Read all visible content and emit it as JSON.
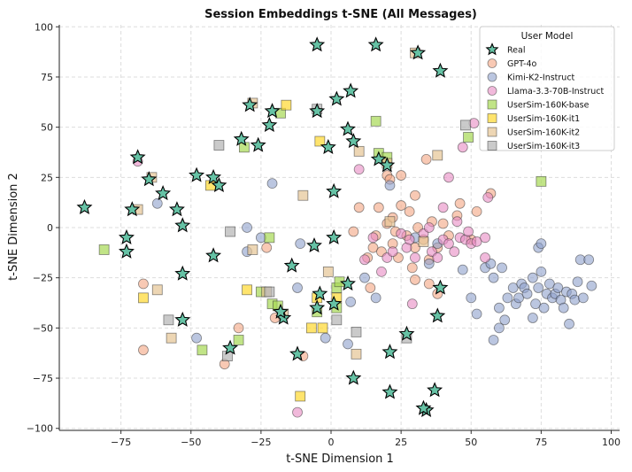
{
  "chart_data": {
    "type": "scatter",
    "title": "Session Embeddings t-SNE (All Messages)",
    "xlabel": "t-SNE Dimension 1",
    "ylabel": "t-SNE Dimension 2",
    "xlim": [
      -97,
      103
    ],
    "ylim": [
      -101,
      101
    ],
    "xticks": [
      -75,
      -50,
      -25,
      0,
      25,
      50,
      75,
      100
    ],
    "yticks": [
      -100,
      -75,
      -50,
      -25,
      0,
      25,
      50,
      75,
      100
    ],
    "grid": true,
    "legend": {
      "title": "User Model",
      "position": "top-right"
    },
    "series": [
      {
        "name": "GPT-4o",
        "marker": "circle",
        "color": "#f4a582",
        "alpha": 0.6,
        "points": [
          [
            -67,
            -61
          ],
          [
            -67,
            -28
          ],
          [
            -38,
            -68
          ],
          [
            -23,
            -10
          ],
          [
            -20,
            -45
          ],
          [
            -10,
            -64
          ],
          [
            8,
            -2
          ],
          [
            10,
            10
          ],
          [
            13,
            -15
          ],
          [
            14,
            -30
          ],
          [
            15,
            -10
          ],
          [
            16,
            -4
          ],
          [
            17,
            10
          ],
          [
            18,
            -12
          ],
          [
            20,
            2
          ],
          [
            20,
            26
          ],
          [
            21,
            24
          ],
          [
            22,
            -8
          ],
          [
            22,
            5
          ],
          [
            23,
            -2
          ],
          [
            24,
            -15
          ],
          [
            25,
            26
          ],
          [
            25,
            11
          ],
          [
            27,
            -4
          ],
          [
            28,
            8
          ],
          [
            29,
            -20
          ],
          [
            30,
            -10
          ],
          [
            30,
            -26
          ],
          [
            30,
            16
          ],
          [
            31,
            0
          ],
          [
            33,
            -6
          ],
          [
            34,
            34
          ],
          [
            35,
            -16
          ],
          [
            35,
            -28
          ],
          [
            36,
            3
          ],
          [
            38,
            -10
          ],
          [
            38,
            -33
          ],
          [
            40,
            2
          ],
          [
            42,
            -4
          ],
          [
            45,
            6
          ],
          [
            46,
            12
          ],
          [
            50,
            -6
          ],
          [
            52,
            8
          ],
          [
            57,
            17
          ],
          [
            -33,
            -50
          ]
        ]
      },
      {
        "name": "Kimi-K2-Instruct",
        "marker": "circle",
        "color": "#8da0cb",
        "alpha": 0.6,
        "points": [
          [
            -62,
            12
          ],
          [
            -48,
            -55
          ],
          [
            -30,
            0
          ],
          [
            -30,
            -12
          ],
          [
            -25,
            -5
          ],
          [
            -21,
            22
          ],
          [
            -12,
            -30
          ],
          [
            -11,
            -8
          ],
          [
            -2,
            -55
          ],
          [
            6,
            -58
          ],
          [
            7,
            -37
          ],
          [
            12,
            -25
          ],
          [
            16,
            -35
          ],
          [
            21,
            21
          ],
          [
            30,
            -5
          ],
          [
            35,
            -18
          ],
          [
            38,
            -8
          ],
          [
            47,
            -21
          ],
          [
            50,
            -35
          ],
          [
            52,
            -43
          ],
          [
            55,
            -20
          ],
          [
            57,
            -18
          ],
          [
            58,
            -25
          ],
          [
            60,
            -40
          ],
          [
            61,
            -20
          ],
          [
            62,
            -46
          ],
          [
            63,
            -35
          ],
          [
            65,
            -30
          ],
          [
            66,
            -38
          ],
          [
            67,
            -35
          ],
          [
            68,
            -28
          ],
          [
            69,
            -30
          ],
          [
            70,
            -33
          ],
          [
            72,
            -25
          ],
          [
            72,
            -45
          ],
          [
            73,
            -38
          ],
          [
            74,
            -10
          ],
          [
            74,
            -30
          ],
          [
            75,
            -22
          ],
          [
            76,
            -40
          ],
          [
            77,
            -33
          ],
          [
            78,
            -28
          ],
          [
            79,
            -35
          ],
          [
            80,
            -33
          ],
          [
            81,
            -30
          ],
          [
            82,
            -36
          ],
          [
            83,
            -40
          ],
          [
            84,
            -32
          ],
          [
            85,
            -48
          ],
          [
            86,
            -33
          ],
          [
            87,
            -36
          ],
          [
            88,
            -27
          ],
          [
            89,
            -16
          ],
          [
            90,
            -35
          ],
          [
            92,
            -16
          ],
          [
            93,
            -29
          ],
          [
            58,
            -56
          ],
          [
            60,
            -50
          ],
          [
            75,
            -8
          ]
        ]
      },
      {
        "name": "Llama-3.3-70B-Instruct",
        "marker": "circle",
        "color": "#e78ac3",
        "alpha": 0.6,
        "points": [
          [
            -69,
            33
          ],
          [
            -12,
            -92
          ],
          [
            10,
            29
          ],
          [
            12,
            -16
          ],
          [
            15,
            -5
          ],
          [
            18,
            -22
          ],
          [
            20,
            -15
          ],
          [
            22,
            -12
          ],
          [
            25,
            -3
          ],
          [
            27,
            -10
          ],
          [
            28,
            -6
          ],
          [
            30,
            -15
          ],
          [
            33,
            -3
          ],
          [
            35,
            0
          ],
          [
            36,
            -12
          ],
          [
            38,
            -15
          ],
          [
            40,
            -6
          ],
          [
            42,
            -8
          ],
          [
            44,
            -12
          ],
          [
            45,
            3
          ],
          [
            46,
            -5
          ],
          [
            48,
            -6
          ],
          [
            49,
            -2
          ],
          [
            50,
            -8
          ],
          [
            52,
            -7
          ],
          [
            55,
            -5
          ],
          [
            56,
            15
          ],
          [
            42,
            25
          ],
          [
            47,
            40
          ],
          [
            51,
            52
          ],
          [
            55,
            -15
          ],
          [
            40,
            10
          ],
          [
            29,
            -38
          ]
        ]
      },
      {
        "name": "UserSim-160K-base",
        "marker": "square",
        "color": "#a6d854",
        "alpha": 0.7,
        "points": [
          [
            -81,
            -11
          ],
          [
            -46,
            -61
          ],
          [
            -33,
            -56
          ],
          [
            -31,
            40
          ],
          [
            -25,
            -32
          ],
          [
            -21,
            -38
          ],
          [
            -19,
            -39
          ],
          [
            16,
            53
          ],
          [
            17,
            37
          ],
          [
            20,
            35
          ],
          [
            49,
            45
          ],
          [
            75,
            23
          ],
          [
            -18,
            57
          ],
          [
            -22,
            -5
          ],
          [
            2,
            -30
          ],
          [
            -5,
            -42
          ],
          [
            2,
            -40
          ],
          [
            3,
            -27
          ]
        ]
      },
      {
        "name": "UserSim-160K-it1",
        "marker": "square",
        "color": "#ffd92f",
        "alpha": 0.7,
        "points": [
          [
            -43,
            21
          ],
          [
            -67,
            -35
          ],
          [
            -16,
            61
          ],
          [
            -11,
            -84
          ],
          [
            -7,
            -50
          ],
          [
            -4,
            43
          ],
          [
            -5,
            -35
          ],
          [
            -3,
            -50
          ],
          [
            2,
            -35
          ],
          [
            -30,
            -31
          ]
        ]
      },
      {
        "name": "UserSim-160K-it2",
        "marker": "square",
        "color": "#e5c494",
        "alpha": 0.7,
        "points": [
          [
            -69,
            9
          ],
          [
            -62,
            -31
          ],
          [
            -57,
            -55
          ],
          [
            -28,
            -11
          ],
          [
            -23,
            -32
          ],
          [
            -17,
            -43
          ],
          [
            -10,
            16
          ],
          [
            9,
            -63
          ],
          [
            21,
            3
          ],
          [
            33,
            -7
          ],
          [
            38,
            36
          ],
          [
            20,
            32
          ],
          [
            -64,
            25
          ],
          [
            -28,
            62
          ],
          [
            30,
            87
          ],
          [
            10,
            38
          ],
          [
            -1,
            -22
          ]
        ]
      },
      {
        "name": "UserSim-160K-it3",
        "marker": "square",
        "color": "#b3b3b3",
        "alpha": 0.7,
        "points": [
          [
            -40,
            41
          ],
          [
            -36,
            -2
          ],
          [
            -37,
            -64
          ],
          [
            -22,
            -32
          ],
          [
            -5,
            59
          ],
          [
            9,
            -52
          ],
          [
            27,
            -55
          ],
          [
            48,
            51
          ],
          [
            -58,
            -46
          ],
          [
            2,
            -46
          ]
        ]
      },
      {
        "name": "Real",
        "marker": "star",
        "color": "#66c2a5",
        "alpha": 1.0,
        "points": [
          [
            -5,
            91
          ],
          [
            16,
            91
          ],
          [
            31,
            87
          ],
          [
            39,
            78
          ],
          [
            7,
            68
          ],
          [
            2,
            64
          ],
          [
            -29,
            61
          ],
          [
            -21,
            58
          ],
          [
            -5,
            58
          ],
          [
            -22,
            51
          ],
          [
            6,
            49
          ],
          [
            8,
            43
          ],
          [
            -32,
            44
          ],
          [
            -26,
            41
          ],
          [
            -1,
            40
          ],
          [
            17,
            34
          ],
          [
            20,
            31
          ],
          [
            -69,
            35
          ],
          [
            -65,
            24
          ],
          [
            -48,
            26
          ],
          [
            -42,
            25
          ],
          [
            -40,
            21
          ],
          [
            -60,
            17
          ],
          [
            1,
            18
          ],
          [
            -88,
            10
          ],
          [
            -55,
            9
          ],
          [
            -71,
            9
          ],
          [
            -53,
            1
          ],
          [
            -73,
            -5
          ],
          [
            -73,
            -12
          ],
          [
            1,
            -5
          ],
          [
            -6,
            -9
          ],
          [
            -42,
            -14
          ],
          [
            -14,
            -19
          ],
          [
            -53,
            -23
          ],
          [
            6,
            -28
          ],
          [
            39,
            -30
          ],
          [
            -4,
            -33
          ],
          [
            1,
            -38
          ],
          [
            -5,
            -40
          ],
          [
            -17,
            -45
          ],
          [
            38,
            -44
          ],
          [
            -53,
            -46
          ],
          [
            27,
            -53
          ],
          [
            -36,
            -60
          ],
          [
            -12,
            -63
          ],
          [
            21,
            -62
          ],
          [
            8,
            -75
          ],
          [
            21,
            -82
          ],
          [
            37,
            -81
          ],
          [
            34,
            -91
          ],
          [
            -18,
            -42
          ],
          [
            33,
            -90
          ]
        ]
      }
    ]
  }
}
